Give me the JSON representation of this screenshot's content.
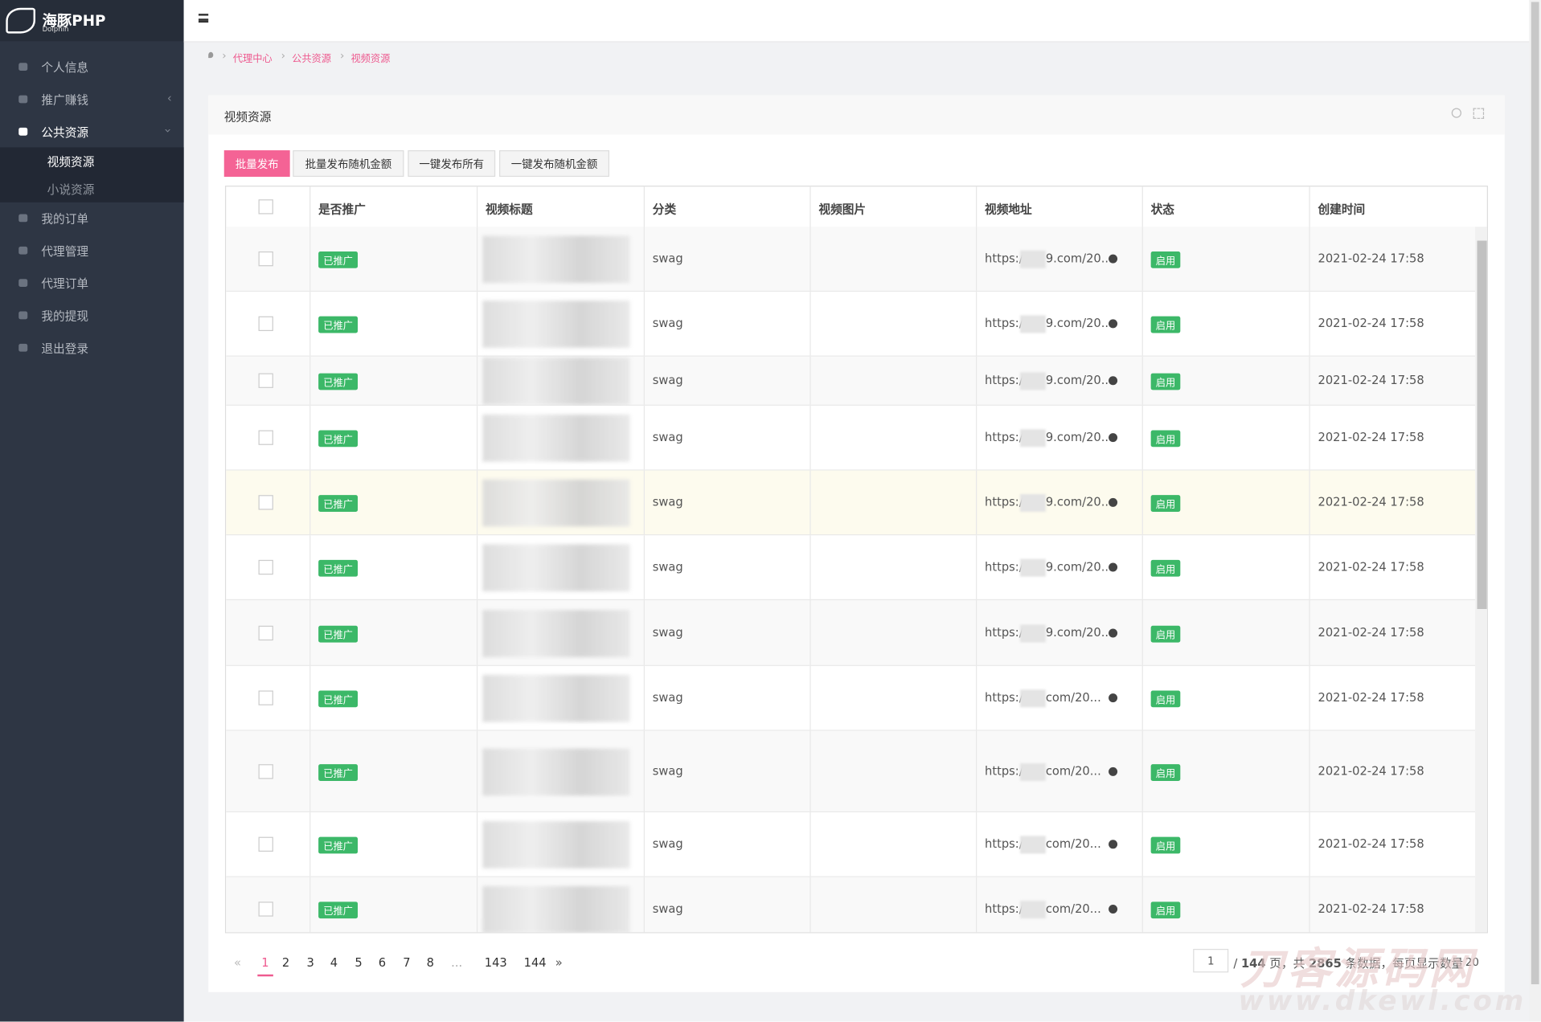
{
  "logo": {
    "name": "海豚PHP",
    "sub": "Dolphin"
  },
  "sidebar": [
    {
      "label": "个人信息"
    },
    {
      "label": "推广赚钱"
    },
    {
      "label": "公共资源",
      "children": [
        "视频资源",
        "小说资源"
      ]
    },
    {
      "label": "我的订单"
    },
    {
      "label": "代理管理"
    },
    {
      "label": "代理订单"
    },
    {
      "label": "我的提现"
    },
    {
      "label": "退出登录"
    }
  ],
  "breadcrumb": [
    "代理中心",
    "公共资源",
    "视频资源"
  ],
  "panel": {
    "title": "视频资源"
  },
  "buttons": [
    "批量发布",
    "批量发布随机金额",
    "一键发布所有",
    "一键发布随机金额"
  ],
  "table": {
    "headers": [
      "是否推广",
      "视频标题",
      "分类",
      "视频图片",
      "视频地址",
      "状态",
      "创建时间"
    ],
    "rows": [
      {
        "promoted": "已推广",
        "category": "swag",
        "url_start": "https://",
        "url_end": "9.com/20...",
        "status": "启用",
        "created": "2021-02-24 17:58"
      },
      {
        "promoted": "已推广",
        "category": "swag",
        "url_start": "https://",
        "url_end": "9.com/20...",
        "status": "启用",
        "created": "2021-02-24 17:58"
      },
      {
        "promoted": "已推广",
        "category": "swag",
        "url_start": "https://",
        "url_end": "9.com/20...",
        "status": "启用",
        "created": "2021-02-24 17:58"
      },
      {
        "promoted": "已推广",
        "category": "swag",
        "url_start": "https://",
        "url_end": "9.com/20...",
        "status": "启用",
        "created": "2021-02-24 17:58"
      },
      {
        "promoted": "已推广",
        "category": "swag",
        "url_start": "https://",
        "url_end": "9.com/20...",
        "status": "启用",
        "created": "2021-02-24 17:58"
      },
      {
        "promoted": "已推广",
        "category": "swag",
        "url_start": "https://",
        "url_end": "9.com/20...",
        "status": "启用",
        "created": "2021-02-24 17:58"
      },
      {
        "promoted": "已推广",
        "category": "swag",
        "url_start": "https://",
        "url_end": "9.com/20...",
        "status": "启用",
        "created": "2021-02-24 17:58"
      },
      {
        "promoted": "已推广",
        "category": "swag",
        "url_start": "https://l",
        "url_end": "com/20...",
        "status": "启用",
        "created": "2021-02-24 17:58"
      },
      {
        "promoted": "已推广",
        "category": "swag",
        "url_start": "https://lt",
        "url_end": "com/20...",
        "status": "启用",
        "created": "2021-02-24 17:58"
      },
      {
        "promoted": "已推广",
        "category": "swag",
        "url_start": "https://lt",
        "url_end": "com/20...",
        "status": "启用",
        "created": "2021-02-24 17:58"
      },
      {
        "promoted": "已推广",
        "category": "swag",
        "url_start": "https://lt",
        "url_end": "com/20...",
        "status": "启用",
        "created": "2021-02-24 17:58"
      }
    ]
  },
  "pagination": {
    "prev": "«",
    "pages": [
      "1",
      "2",
      "3",
      "4",
      "5",
      "6",
      "7",
      "8",
      "...",
      "143",
      "144"
    ],
    "next": "»",
    "current_input": "1",
    "summary_parts": [
      "/ ",
      "144",
      " 页，共 ",
      "2865",
      " 条数据，每页显示数量"
    ],
    "page_size": "20"
  },
  "watermark": {
    "name": "刀客源码网",
    "url": "www.dkewl.com"
  }
}
